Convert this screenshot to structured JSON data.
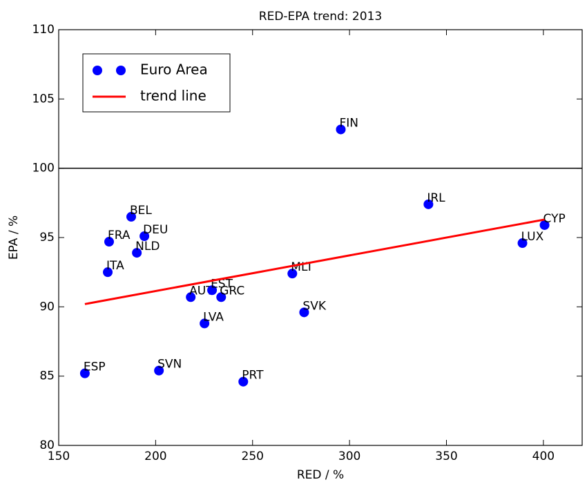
{
  "chart_data": {
    "type": "scatter",
    "title": "RED-EPA trend: 2013",
    "x_label": "RED / %",
    "y_label": "EPA / %",
    "xlim": [
      150,
      420
    ],
    "ylim": [
      80,
      110
    ],
    "xticks": [
      150,
      200,
      250,
      300,
      350,
      400
    ],
    "yticks": [
      80,
      85,
      90,
      95,
      100,
      105,
      110
    ],
    "hline": 100,
    "legend": "upper left",
    "series": [
      {
        "name": "Euro Area",
        "color": "#0000ff",
        "labels": [
          "ESP",
          "SVN",
          "PRT",
          "LVA",
          "AUT",
          "EST",
          "GRC",
          "SVK",
          "MLT",
          "ITA",
          "NLD",
          "FRA",
          "DEU",
          "BEL",
          "FIN",
          "IRL",
          "CYP",
          "LUX"
        ],
        "x": [
          163.5,
          201.7,
          245.2,
          225.2,
          218.1,
          229.1,
          233.8,
          276.6,
          270.5,
          175.3,
          190.3,
          176.0,
          194.2,
          187.4,
          295.5,
          340.7,
          400.6,
          389.2
        ],
        "y": [
          85.2,
          85.4,
          84.6,
          88.8,
          90.7,
          91.2,
          90.7,
          89.6,
          92.4,
          92.5,
          93.9,
          94.7,
          95.1,
          96.5,
          102.8,
          97.4,
          95.9,
          94.6
        ]
      },
      {
        "name": "trend line",
        "color": "#ff0000",
        "x": [
          163.5,
          400.6
        ],
        "y": [
          90.2,
          96.3
        ]
      }
    ]
  }
}
